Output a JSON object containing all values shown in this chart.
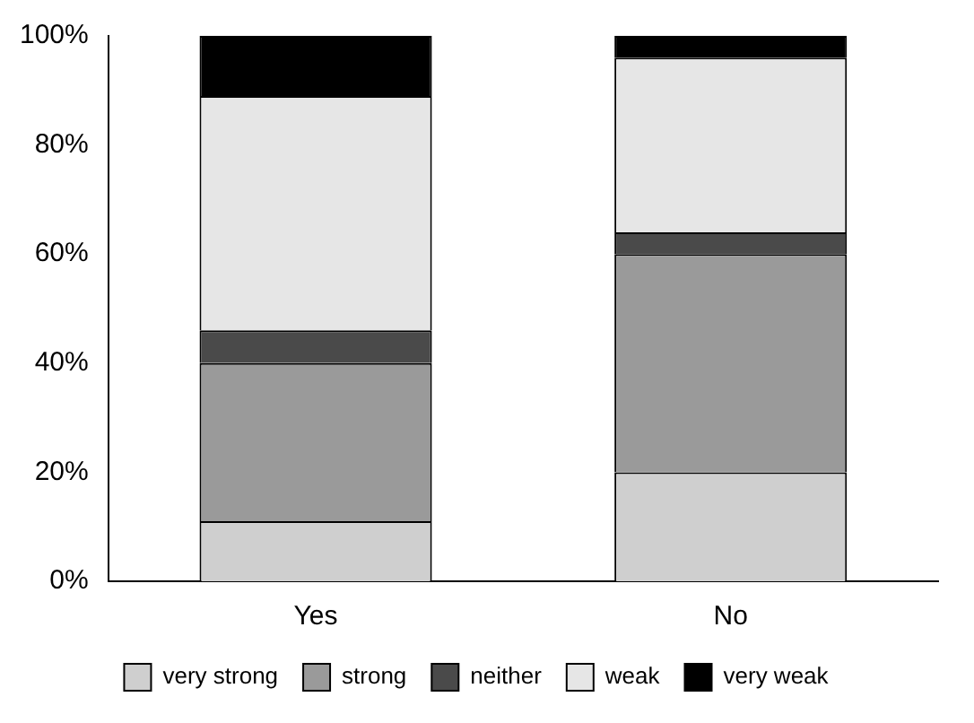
{
  "chart_data": {
    "type": "bar",
    "stacked": true,
    "categories": [
      "Yes",
      "No"
    ],
    "series": [
      {
        "name": "very strong",
        "color": "#cfcfcf",
        "values": [
          11,
          20
        ]
      },
      {
        "name": "strong",
        "color": "#9a9a9a",
        "values": [
          29,
          40
        ]
      },
      {
        "name": "neither",
        "color": "#4a4a4a",
        "values": [
          6,
          4
        ]
      },
      {
        "name": "weak",
        "color": "#e6e6e6",
        "values": [
          43,
          32
        ]
      },
      {
        "name": "very weak",
        "color": "#000000",
        "values": [
          11,
          4
        ]
      }
    ],
    "ylim": [
      0,
      100
    ],
    "yticks": [
      {
        "value": 0,
        "label": "0%"
      },
      {
        "value": 20,
        "label": "20%"
      },
      {
        "value": 40,
        "label": "40%"
      },
      {
        "value": 60,
        "label": "60%"
      },
      {
        "value": 80,
        "label": "80%"
      },
      {
        "value": 100,
        "label": "100%"
      }
    ],
    "grid": false,
    "legend": "bottom"
  }
}
